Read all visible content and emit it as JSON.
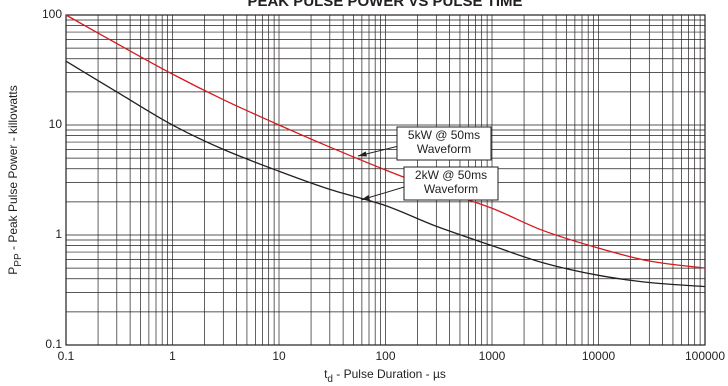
{
  "chart_data": {
    "type": "line",
    "title": "PEAK PULSE POWER VS PULSE TIME",
    "xlabel": {
      "symbol": "t",
      "sub": "d",
      "text": " - Pulse Duration - µs"
    },
    "ylabel": {
      "symbol": "P",
      "sub": "PP",
      "text": " - Peak Pulse Power - killowatts"
    },
    "xscale": "log",
    "yscale": "log",
    "x": [
      0.1,
      0.3,
      1,
      3,
      10,
      30,
      100,
      300,
      1000,
      3000,
      10000,
      30000,
      100000
    ],
    "series": [
      {
        "name": "5kW",
        "color": "#d7191c",
        "values": [
          100,
          55,
          29,
          17,
          10,
          6.3,
          3.9,
          2.6,
          1.75,
          1.1,
          0.76,
          0.58,
          0.5
        ]
      },
      {
        "name": "2kW",
        "color": "#231f20",
        "values": [
          38,
          20,
          10,
          6,
          3.8,
          2.6,
          1.85,
          1.2,
          0.8,
          0.56,
          0.43,
          0.37,
          0.34
        ]
      }
    ],
    "xlim": [
      0.1,
      100000
    ],
    "ylim": [
      0.1,
      100
    ],
    "xticks": [
      0.1,
      1,
      10,
      100,
      1000,
      10000,
      100000
    ],
    "yticks": [
      0.1,
      1,
      10,
      100
    ],
    "grid": true,
    "annotations": [
      {
        "lines": [
          "5kW @ 50ms",
          "Waveform"
        ]
      },
      {
        "lines": [
          "2kW @ 50ms",
          "Waveform"
        ]
      }
    ]
  }
}
